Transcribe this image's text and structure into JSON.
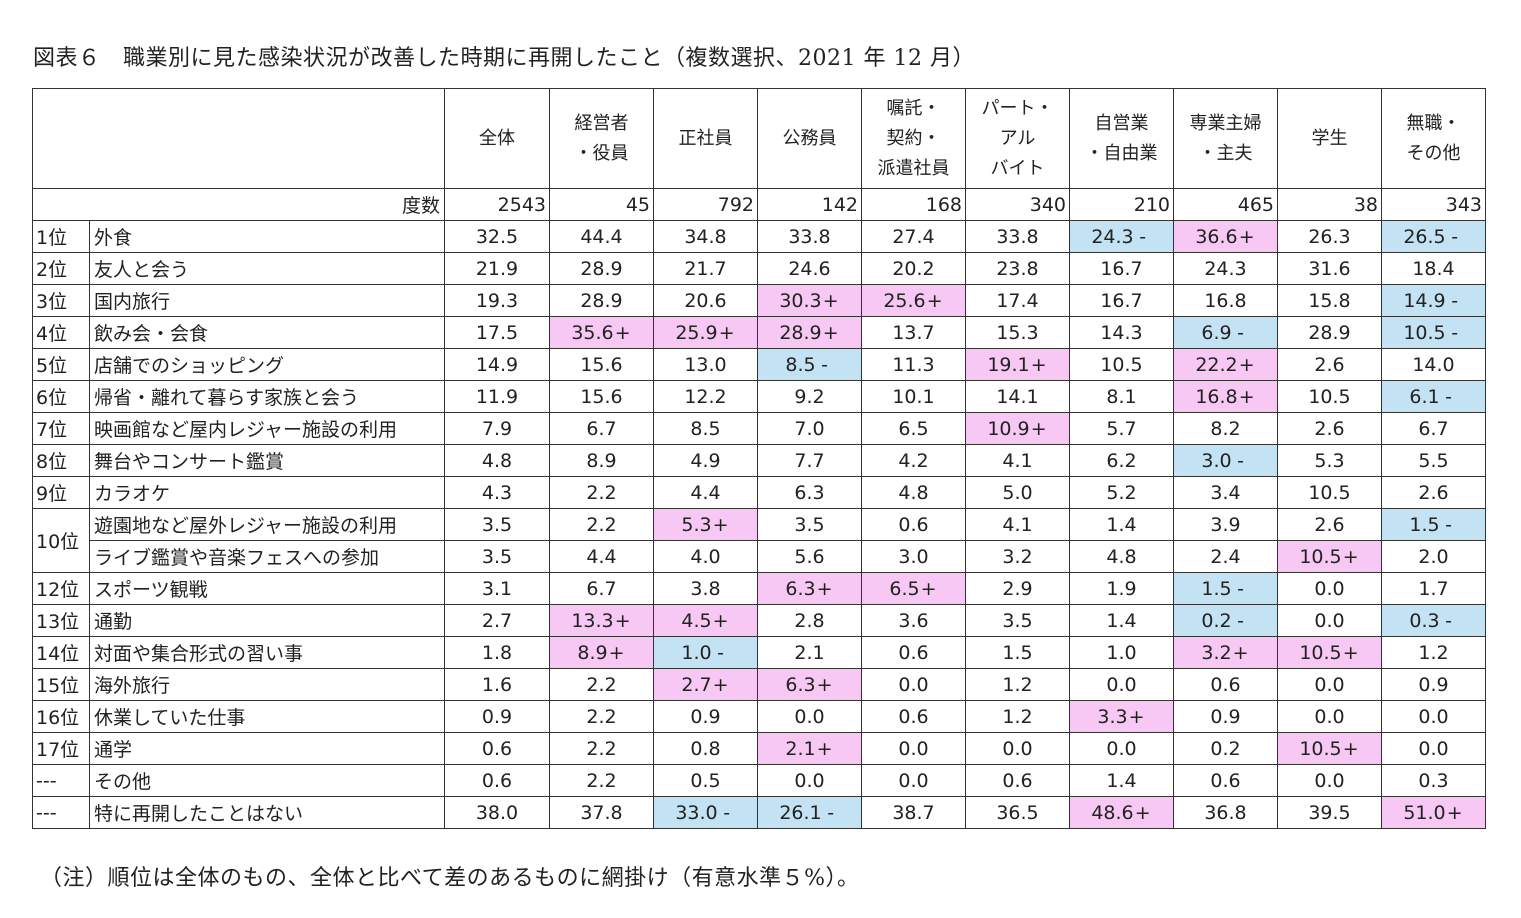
{
  "title": "図表６　職業別に見た感染状況が改善した時期に再開したこと（複数選択、2021 年 12 月）",
  "note": "（注）順位は全体のもの、全体と比べて差のあるものに網掛け（有意水準５%）。",
  "colors": {
    "positive_highlight": "#f8c8f5",
    "negative_highlight": "#c3e3f5"
  },
  "columns": [
    [
      "全体"
    ],
    [
      "経営者",
      "・役員"
    ],
    [
      "正社員"
    ],
    [
      "公務員"
    ],
    [
      "嘱託・",
      "契約・",
      "派遣社員"
    ],
    [
      "パート・",
      "アル",
      "バイト"
    ],
    [
      "自営業",
      "・自由業"
    ],
    [
      "専業主婦",
      "・主夫"
    ],
    [
      "学生"
    ],
    [
      "無職・",
      "その他"
    ]
  ],
  "dosu_label": "度数",
  "dosu": [
    "2543",
    "45",
    "792",
    "142",
    "168",
    "340",
    "210",
    "465",
    "38",
    "343"
  ],
  "rows": [
    {
      "rank": "1位",
      "item": "外食",
      "values": [
        "32.5",
        "44.4",
        "34.8",
        "33.8",
        "27.4",
        "33.8",
        "24.3",
        "36.6",
        "26.3",
        "26.5"
      ],
      "sig": [
        "",
        "",
        "",
        "",
        "",
        "",
        "-",
        "+",
        "",
        "-"
      ]
    },
    {
      "rank": "2位",
      "item": "友人と会う",
      "values": [
        "21.9",
        "28.9",
        "21.7",
        "24.6",
        "20.2",
        "23.8",
        "16.7",
        "24.3",
        "31.6",
        "18.4"
      ],
      "sig": [
        "",
        "",
        "",
        "",
        "",
        "",
        "",
        "",
        "",
        ""
      ]
    },
    {
      "rank": "3位",
      "item": "国内旅行",
      "values": [
        "19.3",
        "28.9",
        "20.6",
        "30.3",
        "25.6",
        "17.4",
        "16.7",
        "16.8",
        "15.8",
        "14.9"
      ],
      "sig": [
        "",
        "",
        "",
        "+",
        "+",
        "",
        "",
        "",
        "",
        "-"
      ]
    },
    {
      "rank": "4位",
      "item": "飲み会・会食",
      "values": [
        "17.5",
        "35.6",
        "25.9",
        "28.9",
        "13.7",
        "15.3",
        "14.3",
        "6.9",
        "28.9",
        "10.5"
      ],
      "sig": [
        "",
        "+",
        "+",
        "+",
        "",
        "",
        "",
        "-",
        "",
        "-"
      ]
    },
    {
      "rank": "5位",
      "item": "店舗でのショッピング",
      "values": [
        "14.9",
        "15.6",
        "13.0",
        "8.5",
        "11.3",
        "19.1",
        "10.5",
        "22.2",
        "2.6",
        "14.0"
      ],
      "sig": [
        "",
        "",
        "",
        "-",
        "",
        "+",
        "",
        "+",
        "",
        ""
      ]
    },
    {
      "rank": "6位",
      "item": "帰省・離れて暮らす家族と会う",
      "values": [
        "11.9",
        "15.6",
        "12.2",
        "9.2",
        "10.1",
        "14.1",
        "8.1",
        "16.8",
        "10.5",
        "6.1"
      ],
      "sig": [
        "",
        "",
        "",
        "",
        "",
        "",
        "",
        "+",
        "",
        "-"
      ]
    },
    {
      "rank": "7位",
      "item": "映画館など屋内レジャー施設の利用",
      "values": [
        "7.9",
        "6.7",
        "8.5",
        "7.0",
        "6.5",
        "10.9",
        "5.7",
        "8.2",
        "2.6",
        "6.7"
      ],
      "sig": [
        "",
        "",
        "",
        "",
        "",
        "+",
        "",
        "",
        "",
        ""
      ]
    },
    {
      "rank": "8位",
      "item": "舞台やコンサート鑑賞",
      "values": [
        "4.8",
        "8.9",
        "4.9",
        "7.7",
        "4.2",
        "4.1",
        "6.2",
        "3.0",
        "5.3",
        "5.5"
      ],
      "sig": [
        "",
        "",
        "",
        "",
        "",
        "",
        "",
        "-",
        "",
        ""
      ]
    },
    {
      "rank": "9位",
      "item": "カラオケ",
      "values": [
        "4.3",
        "2.2",
        "4.4",
        "6.3",
        "4.8",
        "5.0",
        "5.2",
        "3.4",
        "10.5",
        "2.6"
      ],
      "sig": [
        "",
        "",
        "",
        "",
        "",
        "",
        "",
        "",
        "",
        ""
      ]
    },
    {
      "rank": "10位",
      "item": "遊園地など屋外レジャー施設の利用",
      "values": [
        "3.5",
        "2.2",
        "5.3",
        "3.5",
        "0.6",
        "4.1",
        "1.4",
        "3.9",
        "2.6",
        "1.5"
      ],
      "sig": [
        "",
        "",
        "+",
        "",
        "",
        "",
        "",
        "",
        "",
        "-"
      ]
    },
    {
      "rank": "",
      "item": "ライブ鑑賞や音楽フェスへの参加",
      "values": [
        "3.5",
        "4.4",
        "4.0",
        "5.6",
        "3.0",
        "3.2",
        "4.8",
        "2.4",
        "10.5",
        "2.0"
      ],
      "sig": [
        "",
        "",
        "",
        "",
        "",
        "",
        "",
        "",
        "+",
        ""
      ]
    },
    {
      "rank": "12位",
      "item": "スポーツ観戦",
      "values": [
        "3.1",
        "6.7",
        "3.8",
        "6.3",
        "6.5",
        "2.9",
        "1.9",
        "1.5",
        "0.0",
        "1.7"
      ],
      "sig": [
        "",
        "",
        "",
        "+",
        "+",
        "",
        "",
        "-",
        "",
        ""
      ]
    },
    {
      "rank": "13位",
      "item": "通勤",
      "values": [
        "2.7",
        "13.3",
        "4.5",
        "2.8",
        "3.6",
        "3.5",
        "1.4",
        "0.2",
        "0.0",
        "0.3"
      ],
      "sig": [
        "",
        "+",
        "+",
        "",
        "",
        "",
        "",
        "-",
        "",
        "-"
      ]
    },
    {
      "rank": "14位",
      "item": "対面や集合形式の習い事",
      "values": [
        "1.8",
        "8.9",
        "1.0",
        "2.1",
        "0.6",
        "1.5",
        "1.0",
        "3.2",
        "10.5",
        "1.2"
      ],
      "sig": [
        "",
        "+",
        "-",
        "",
        "",
        "",
        "",
        "+",
        "+",
        ""
      ]
    },
    {
      "rank": "15位",
      "item": "海外旅行",
      "values": [
        "1.6",
        "2.2",
        "2.7",
        "6.3",
        "0.0",
        "1.2",
        "0.0",
        "0.6",
        "0.0",
        "0.9"
      ],
      "sig": [
        "",
        "",
        "+",
        "+",
        "",
        "",
        "",
        "",
        "",
        ""
      ]
    },
    {
      "rank": "16位",
      "item": "休業していた仕事",
      "values": [
        "0.9",
        "2.2",
        "0.9",
        "0.0",
        "0.6",
        "1.2",
        "3.3",
        "0.9",
        "0.0",
        "0.0"
      ],
      "sig": [
        "",
        "",
        "",
        "",
        "",
        "",
        "+",
        "",
        "",
        ""
      ]
    },
    {
      "rank": "17位",
      "item": "通学",
      "values": [
        "0.6",
        "2.2",
        "0.8",
        "2.1",
        "0.0",
        "0.0",
        "0.0",
        "0.2",
        "10.5",
        "0.0"
      ],
      "sig": [
        "",
        "",
        "",
        "+",
        "",
        "",
        "",
        "",
        "+",
        ""
      ]
    },
    {
      "rank": "---",
      "item": "その他",
      "values": [
        "0.6",
        "2.2",
        "0.5",
        "0.0",
        "0.0",
        "0.6",
        "1.4",
        "0.6",
        "0.0",
        "0.3"
      ],
      "sig": [
        "",
        "",
        "",
        "",
        "",
        "",
        "",
        "",
        "",
        ""
      ]
    },
    {
      "rank": "---",
      "item": "特に再開したことはない",
      "values": [
        "38.0",
        "37.8",
        "33.0",
        "26.1",
        "38.7",
        "36.5",
        "48.6",
        "36.8",
        "39.5",
        "51.0"
      ],
      "sig": [
        "",
        "",
        "-",
        "-",
        "",
        "",
        "+",
        "",
        "",
        "+"
      ]
    }
  ]
}
